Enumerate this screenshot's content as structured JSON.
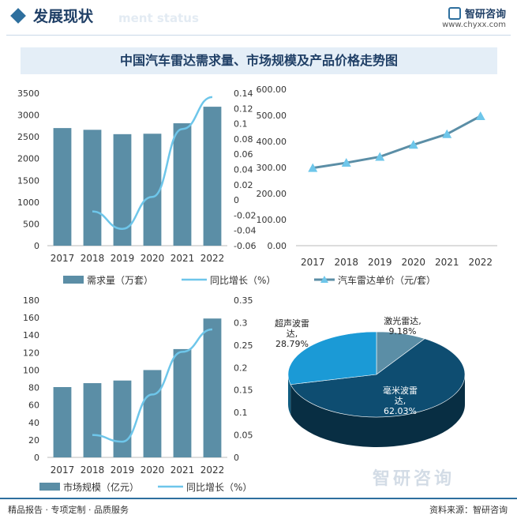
{
  "header": {
    "title": "发展现状",
    "ghost_text": "ment status",
    "brand_name": "智研咨询",
    "brand_url": "www.chyxx.com"
  },
  "main_title": "中国汽车雷达需求量、市场规模及产品价格走势图",
  "colors": {
    "bar": "#5b8ea6",
    "line": "#6ec6ea",
    "price_line": "#5b8ea6",
    "price_marker": "#6ec6ea"
  },
  "chart_data": [
    {
      "type": "bar",
      "categories": [
        "2017",
        "2018",
        "2019",
        "2020",
        "2021",
        "2022"
      ],
      "series": [
        {
          "name": "需求量（万套）",
          "values": [
            2700,
            2660,
            2560,
            2570,
            2810,
            3190
          ],
          "axis": "left"
        },
        {
          "name": "同比增长（%）",
          "type": "line",
          "values": [
            null,
            -0.015,
            -0.038,
            0.004,
            0.093,
            0.135
          ],
          "axis": "right"
        }
      ],
      "ylim": [
        0,
        3500
      ],
      "yticks": [
        "0",
        "500",
        "1000",
        "1500",
        "2000",
        "2500",
        "3000",
        "3500"
      ],
      "y2lim": [
        -0.06,
        0.14
      ],
      "y2ticks": [
        "-0.06",
        "-0.04",
        "-0.02",
        "0",
        "0.02",
        "0.04",
        "0.06",
        "0.08",
        "0.1",
        "0.12",
        "0.14"
      ],
      "legend": "bottom"
    },
    {
      "type": "line",
      "categories": [
        "2017",
        "2018",
        "2019",
        "2020",
        "2021",
        "2022"
      ],
      "series": [
        {
          "name": "汽车雷达单价（元/套）",
          "values": [
            298,
            318,
            341,
            387,
            428,
            497
          ]
        }
      ],
      "ylim": [
        0,
        600
      ],
      "yticks": [
        "0.00",
        "100.00",
        "200.00",
        "300.00",
        "400.00",
        "500.00",
        "600.00"
      ],
      "legend": "bottom"
    },
    {
      "type": "bar",
      "categories": [
        "2017",
        "2018",
        "2019",
        "2020",
        "2021",
        "2022"
      ],
      "series": [
        {
          "name": "市场规模（亿元）",
          "values": [
            80.5,
            85,
            88,
            100,
            124,
            159
          ],
          "axis": "left"
        },
        {
          "name": "同比增长（%）",
          "type": "line",
          "values": [
            null,
            0.05,
            0.035,
            0.14,
            0.235,
            0.285
          ],
          "axis": "right"
        }
      ],
      "ylim": [
        0,
        180
      ],
      "yticks": [
        "0",
        "20",
        "40",
        "60",
        "80",
        "100",
        "120",
        "140",
        "160",
        "180"
      ],
      "y2lim": [
        0,
        0.35
      ],
      "y2ticks": [
        "0",
        "0.05",
        "0.1",
        "0.15",
        "0.2",
        "0.25",
        "0.3",
        "0.35"
      ],
      "legend": "bottom"
    },
    {
      "type": "pie",
      "slices": [
        {
          "label": "激光雷达,\n9.18%",
          "value": 9.18,
          "color": "#5b8ea6"
        },
        {
          "label": "毫米波雷\n达,\n62.03%",
          "value": 62.03,
          "color": "#0e4d71"
        },
        {
          "label": "超声波雷\n达,\n28.79%",
          "value": 28.79,
          "color": "#1b9ad6"
        }
      ]
    }
  ],
  "watermark": "智研咨询",
  "footer": {
    "left": "精品报告 · 专项定制 · 品质服务",
    "right": "资料来源：智研咨询"
  }
}
